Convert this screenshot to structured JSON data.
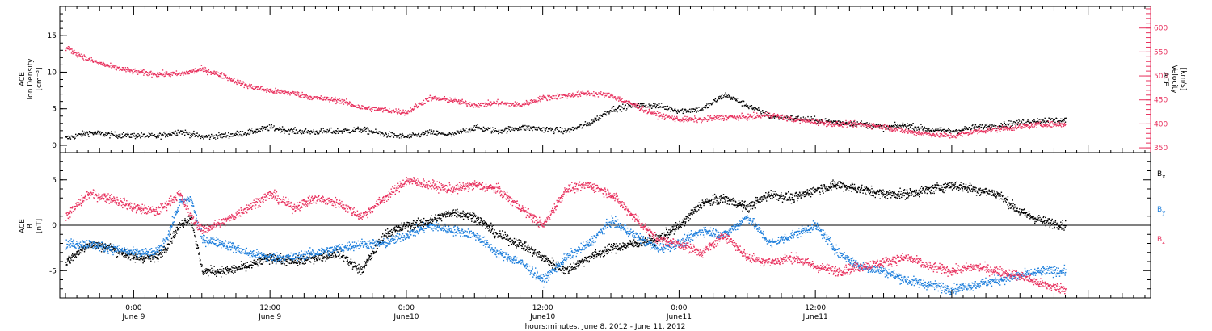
{
  "colors": {
    "black": "#000000",
    "pink": "#e8315e",
    "blue": "#1e7fdc",
    "axis": "#000000"
  },
  "chart_data": [
    {
      "type": "scatter",
      "panel": "top",
      "ylabel_lines": [
        "ACE",
        "Ion Density",
        "[cm⁻³]"
      ],
      "y2label_lines": [
        "ACE",
        "Velocity",
        "[km/s]"
      ],
      "xlim_hours": [
        -6.5,
        89.5
      ],
      "ylim": [
        -1,
        19
      ],
      "y2lim": [
        340,
        645
      ],
      "yticks": [
        0,
        5,
        10,
        15
      ],
      "y2ticks": [
        350,
        400,
        450,
        500,
        550,
        600
      ],
      "series": [
        {
          "color": "black",
          "axis": "left",
          "x": [
            -6,
            -4,
            -2,
            0,
            2,
            4,
            6,
            8,
            10,
            12,
            14,
            16,
            18,
            20,
            22,
            24,
            26,
            28,
            30,
            32,
            34,
            36,
            38,
            40,
            42,
            44,
            46,
            48,
            50,
            52,
            54,
            56,
            58,
            60,
            62,
            64,
            66,
            68,
            70,
            72,
            74,
            76,
            78,
            80,
            82
          ],
          "values": [
            1.0,
            1.8,
            1.5,
            1.4,
            1.3,
            2.0,
            1.2,
            1.4,
            1.8,
            2.5,
            2.0,
            1.9,
            2.0,
            2.2,
            1.6,
            1.2,
            1.8,
            1.5,
            2.5,
            2.0,
            2.5,
            2.3,
            2.0,
            3.0,
            5.0,
            5.5,
            5.5,
            4.8,
            5.0,
            7.0,
            5.5,
            4.0,
            3.8,
            3.5,
            3.2,
            3.0,
            2.5,
            2.8,
            2.2,
            2.0,
            2.5,
            2.8,
            3.2,
            3.5,
            3.5
          ]
        },
        {
          "color": "pink",
          "axis": "right",
          "x": [
            -6,
            -4,
            -2,
            0,
            2,
            4,
            6,
            8,
            10,
            12,
            14,
            16,
            18,
            20,
            22,
            24,
            26,
            28,
            30,
            32,
            34,
            36,
            38,
            40,
            42,
            44,
            46,
            48,
            50,
            52,
            54,
            56,
            58,
            60,
            62,
            64,
            66,
            68,
            70,
            72,
            74,
            76,
            78,
            80,
            82
          ],
          "values": [
            560,
            535,
            520,
            510,
            505,
            505,
            515,
            500,
            480,
            470,
            465,
            455,
            450,
            435,
            430,
            425,
            455,
            450,
            440,
            445,
            440,
            455,
            460,
            465,
            460,
            440,
            420,
            410,
            410,
            415,
            415,
            420,
            410,
            405,
            400,
            400,
            395,
            385,
            380,
            375,
            385,
            390,
            395,
            400,
            400
          ]
        }
      ]
    },
    {
      "type": "scatter",
      "panel": "bottom",
      "ylabel_lines": [
        "ACE",
        "B",
        "[nT]"
      ],
      "xlabel": "hours:minutes, June  8, 2012 - June 11, 2012",
      "xlim_hours": [
        -6.5,
        89.5
      ],
      "ylim": [
        -8,
        8
      ],
      "yticks": [
        -5,
        0,
        5
      ],
      "xticks": [
        {
          "hour": 0,
          "line1": "0:00",
          "line2": "June 9"
        },
        {
          "hour": 12,
          "line1": "12:00",
          "line2": "June 9"
        },
        {
          "hour": 24,
          "line1": "0:00",
          "line2": "June10"
        },
        {
          "hour": 36,
          "line1": "12:00",
          "line2": "June10"
        },
        {
          "hour": 48,
          "line1": "0:00",
          "line2": "June11"
        },
        {
          "hour": 60,
          "line1": "12:00",
          "line2": "June11"
        }
      ],
      "legend": [
        {
          "base": "B",
          "sub": "x",
          "color": "black"
        },
        {
          "base": "B",
          "sub": "y",
          "color": "blue"
        },
        {
          "base": "B",
          "sub": "z",
          "color": "pink"
        }
      ],
      "series": [
        {
          "color": "black",
          "x": [
            -6,
            -4,
            -2,
            0,
            2,
            3,
            4,
            5,
            6,
            8,
            10,
            12,
            14,
            16,
            18,
            20,
            22,
            24,
            26,
            28,
            30,
            32,
            34,
            36,
            38,
            40,
            42,
            44,
            46,
            48,
            50,
            52,
            54,
            56,
            58,
            60,
            62,
            64,
            66,
            68,
            70,
            72,
            74,
            76,
            78,
            80,
            82
          ],
          "values": [
            -4.0,
            -2.0,
            -2.5,
            -3.5,
            -3.5,
            -2.0,
            0.0,
            1.0,
            -5.0,
            -5.0,
            -4.5,
            -3.5,
            -4.0,
            -3.5,
            -3.0,
            -5.0,
            -1.0,
            0.0,
            0.5,
            1.5,
            1.0,
            -1.0,
            -2.0,
            -3.5,
            -5.0,
            -3.5,
            -2.5,
            -2.0,
            -1.5,
            0.0,
            2.5,
            3.0,
            2.0,
            3.5,
            3.0,
            4.0,
            4.5,
            4.0,
            3.5,
            3.5,
            4.0,
            4.5,
            4.0,
            3.5,
            1.5,
            0.5,
            0.0
          ]
        },
        {
          "color": "blue",
          "x": [
            -6,
            -4,
            -2,
            0,
            2,
            3,
            4,
            5,
            6,
            8,
            10,
            12,
            14,
            16,
            18,
            20,
            22,
            24,
            26,
            28,
            30,
            32,
            34,
            36,
            38,
            40,
            42,
            44,
            46,
            48,
            50,
            52,
            54,
            56,
            58,
            60,
            62,
            64,
            66,
            68,
            70,
            72,
            74,
            76,
            78,
            80,
            82
          ],
          "values": [
            -2.0,
            -2.0,
            -2.5,
            -3.0,
            -3.0,
            -1.0,
            2.5,
            3.0,
            -1.5,
            -2.0,
            -3.0,
            -3.5,
            -3.5,
            -3.0,
            -2.5,
            -2.0,
            -2.0,
            -1.0,
            0.0,
            -0.5,
            -1.0,
            -3.0,
            -4.0,
            -6.0,
            -3.5,
            -2.0,
            0.5,
            -1.0,
            -2.5,
            -2.0,
            -0.5,
            -1.0,
            1.0,
            -2.0,
            -1.0,
            0.0,
            -3.0,
            -4.5,
            -5.0,
            -6.0,
            -6.5,
            -7.0,
            -6.5,
            -6.0,
            -5.5,
            -5.0,
            -5.0
          ]
        },
        {
          "color": "pink",
          "x": [
            -6,
            -4,
            -2,
            0,
            2,
            3,
            4,
            5,
            6,
            8,
            10,
            12,
            14,
            16,
            18,
            20,
            22,
            24,
            26,
            28,
            30,
            32,
            34,
            36,
            38,
            40,
            42,
            44,
            46,
            48,
            50,
            52,
            54,
            56,
            58,
            60,
            62,
            64,
            66,
            68,
            70,
            72,
            74,
            76,
            78,
            80,
            82
          ],
          "values": [
            1.0,
            3.5,
            3.0,
            2.0,
            1.5,
            2.5,
            3.5,
            1.0,
            -0.5,
            0.5,
            2.0,
            3.5,
            2.0,
            3.0,
            2.5,
            1.0,
            3.0,
            5.0,
            4.5,
            4.0,
            4.5,
            4.0,
            2.0,
            0.0,
            4.0,
            4.5,
            3.5,
            1.0,
            -1.5,
            -2.0,
            -3.0,
            -1.0,
            -3.5,
            -4.0,
            -3.5,
            -4.5,
            -5.0,
            -4.5,
            -4.0,
            -3.5,
            -4.5,
            -5.0,
            -4.5,
            -5.0,
            -5.5,
            -6.5,
            -7.0
          ]
        }
      ]
    }
  ]
}
